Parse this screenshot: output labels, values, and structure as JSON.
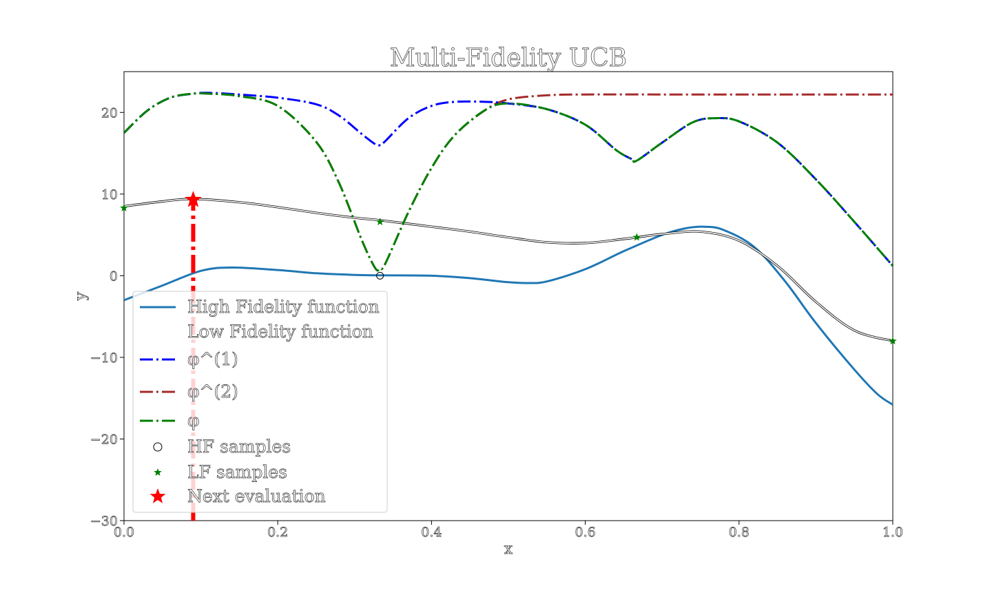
{
  "chart_data": {
    "type": "line",
    "title": "Multi-Fidelity UCB",
    "xlabel": "x",
    "ylabel": "y",
    "xlim": [
      0.0,
      1.0
    ],
    "ylim": [
      -30,
      25
    ],
    "grid": false,
    "legend_position": "lower-left",
    "xticks": [
      0.0,
      0.2,
      0.4,
      0.6,
      0.8,
      1.0
    ],
    "xtick_labels": [
      "0.0",
      "0.2",
      "0.4",
      "0.6",
      "0.8",
      "1.0"
    ],
    "yticks": [
      -30,
      -20,
      -10,
      0,
      10,
      20
    ],
    "ytick_labels": [
      "−30",
      "−20",
      "−10",
      "0",
      "10",
      "20"
    ],
    "series": [
      {
        "name": "High Fidelity function",
        "color": "#1f77b4",
        "style": "solid",
        "x": [
          0.0,
          0.05,
          0.1,
          0.14,
          0.2,
          0.25,
          0.3,
          0.333,
          0.4,
          0.45,
          0.5,
          0.525,
          0.55,
          0.6,
          0.65,
          0.7,
          0.73,
          0.755,
          0.78,
          0.82,
          0.86,
          0.9,
          0.95,
          0.98,
          1.0
        ],
        "y": [
          -3.0,
          -1.2,
          0.6,
          1.0,
          0.7,
          0.3,
          0.1,
          0.05,
          0.0,
          -0.3,
          -0.8,
          -0.9,
          -0.7,
          0.8,
          3.0,
          5.0,
          5.8,
          6.0,
          5.6,
          3.5,
          -0.7,
          -5.8,
          -11.5,
          -14.5,
          -15.8
        ]
      },
      {
        "name": "Low Fidelity function",
        "color": "#ffffff",
        "style": "solid",
        "x": [
          0.0,
          0.05,
          0.09,
          0.15,
          0.2,
          0.25,
          0.3,
          0.333,
          0.4,
          0.45,
          0.5,
          0.55,
          0.6,
          0.65,
          0.667,
          0.7,
          0.75,
          0.8,
          0.85,
          0.9,
          0.95,
          1.0
        ],
        "y": [
          8.5,
          9.1,
          9.4,
          9.0,
          8.4,
          7.7,
          7.1,
          6.8,
          6.0,
          5.4,
          4.7,
          4.1,
          4.0,
          4.5,
          4.7,
          5.1,
          5.4,
          4.3,
          1.2,
          -3.2,
          -6.7,
          -8.0
        ]
      },
      {
        "name": "φ^(1)",
        "color": "#0000ff",
        "style": "dashdot",
        "x": [
          0.0,
          0.03,
          0.06,
          0.09,
          0.11,
          0.15,
          0.2,
          0.25,
          0.28,
          0.31,
          0.327,
          0.333,
          0.34,
          0.37,
          0.4,
          0.43,
          0.47,
          0.5,
          0.55,
          0.6,
          0.64,
          0.66,
          0.667,
          0.7,
          0.74,
          0.77,
          0.8,
          0.85,
          0.9,
          0.95,
          1.0
        ],
        "y": [
          17.5,
          20.2,
          21.8,
          22.3,
          22.4,
          22.2,
          21.8,
          21.0,
          19.6,
          17.3,
          16.1,
          16.0,
          16.5,
          19.3,
          20.8,
          21.3,
          21.3,
          21.1,
          20.4,
          18.5,
          15.4,
          14.3,
          14.1,
          16.3,
          18.8,
          19.3,
          18.9,
          16.3,
          11.8,
          6.6,
          1.2
        ]
      },
      {
        "name": "φ^(2)",
        "color": "#a52a2a",
        "style": "dashdot",
        "x": [
          0.0,
          0.03,
          0.06,
          0.09,
          0.11,
          0.15,
          0.2,
          0.25,
          0.28,
          0.31,
          0.327,
          0.333,
          0.34,
          0.37,
          0.4,
          0.43,
          0.47,
          0.5,
          0.55,
          0.6,
          0.7,
          0.8,
          0.9,
          1.0
        ],
        "y": [
          17.5,
          20.2,
          21.8,
          22.3,
          22.3,
          22.0,
          20.8,
          16.4,
          11.3,
          4.2,
          0.9,
          0.9,
          1.5,
          7.8,
          13.2,
          17.2,
          20.3,
          21.6,
          22.1,
          22.2,
          22.2,
          22.2,
          22.2,
          22.2
        ]
      },
      {
        "name": "φ",
        "color": "#008000",
        "style": "dashdot",
        "x": [
          0.0,
          0.03,
          0.06,
          0.09,
          0.11,
          0.15,
          0.2,
          0.25,
          0.28,
          0.31,
          0.327,
          0.333,
          0.34,
          0.37,
          0.4,
          0.43,
          0.47,
          0.5,
          0.55,
          0.6,
          0.64,
          0.66,
          0.667,
          0.7,
          0.74,
          0.77,
          0.8,
          0.85,
          0.9,
          0.95,
          1.0
        ],
        "y": [
          17.5,
          20.2,
          21.8,
          22.3,
          22.3,
          22.0,
          20.8,
          16.4,
          11.3,
          4.2,
          0.9,
          0.9,
          1.5,
          7.8,
          13.2,
          17.2,
          20.3,
          21.1,
          20.4,
          18.5,
          15.4,
          14.3,
          14.1,
          16.3,
          18.8,
          19.3,
          18.9,
          16.3,
          11.8,
          6.6,
          1.2
        ]
      }
    ],
    "hf_samples": {
      "name": "HF samples",
      "x": [
        0.333
      ],
      "y": [
        0.0
      ]
    },
    "lf_samples": {
      "name": "LF samples",
      "color": "#008000",
      "x": [
        0.0,
        0.333,
        0.667,
        1.0
      ],
      "y": [
        8.3,
        6.6,
        4.7,
        -8.0
      ]
    },
    "next_evaluation": {
      "name": "Next evaluation",
      "color": "#ff0000",
      "x": 0.09,
      "y": 9.3
    }
  }
}
